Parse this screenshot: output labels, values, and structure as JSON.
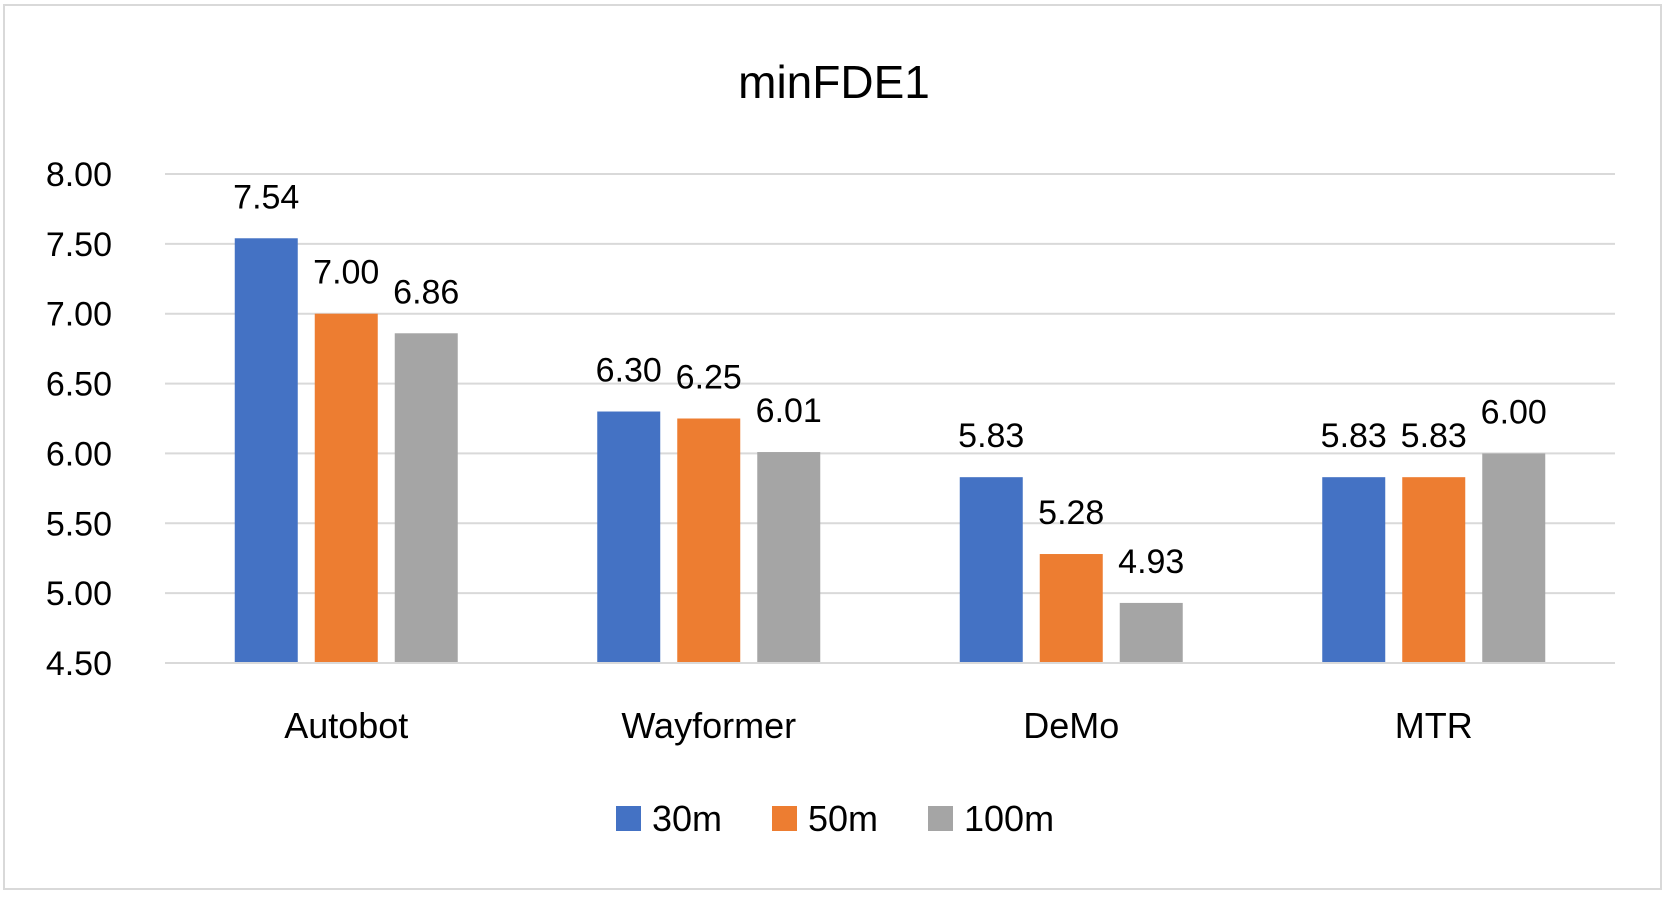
{
  "chart_data": {
    "type": "bar",
    "title": "minFDE1",
    "xlabel": "",
    "ylabel": "",
    "categories": [
      "Autobot",
      "Wayformer",
      "DeMo",
      "MTR"
    ],
    "series": [
      {
        "name": "30m",
        "color": "#4472c4",
        "values": [
          7.54,
          6.3,
          5.83,
          5.83
        ]
      },
      {
        "name": "50m",
        "color": "#ed7d31",
        "values": [
          7.0,
          6.25,
          5.28,
          5.83
        ]
      },
      {
        "name": "100m",
        "color": "#a5a5a5",
        "values": [
          6.86,
          6.01,
          4.93,
          6.0
        ]
      }
    ],
    "ylim": [
      4.5,
      8.0
    ],
    "yticks": [
      "4.50",
      "5.00",
      "5.50",
      "6.00",
      "6.50",
      "7.00",
      "7.50",
      "8.00"
    ],
    "grid": true,
    "legend": "bottom"
  }
}
